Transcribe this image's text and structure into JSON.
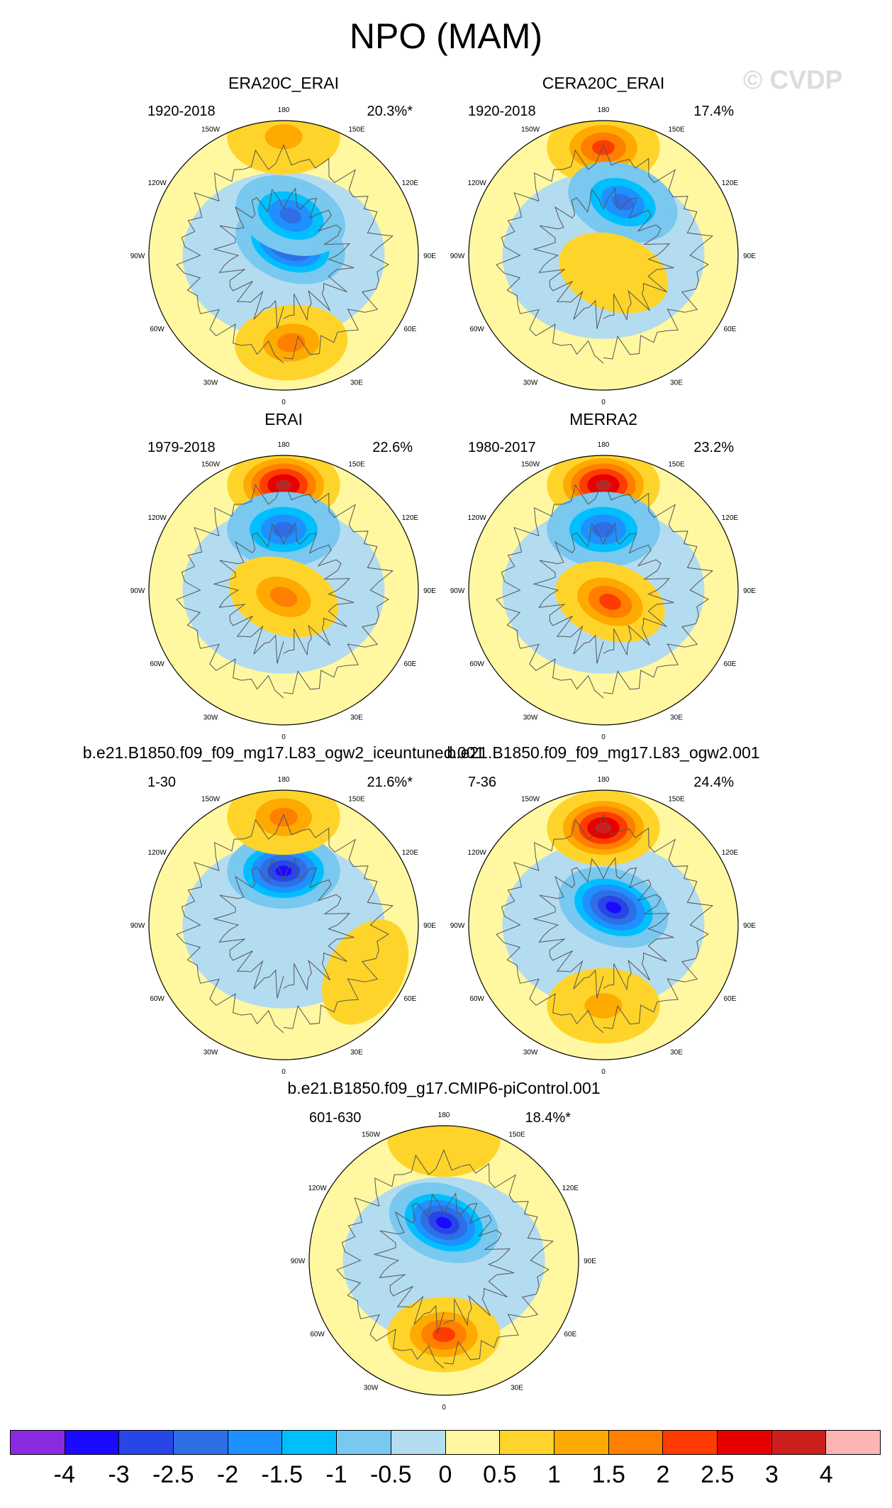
{
  "title": "NPO (MAM)",
  "watermark": "© CVDP",
  "chart_data": {
    "type": "heatmap",
    "description_type": "polar stereographic spatial maps (northern hemisphere)",
    "title": "NPO (MAM)",
    "longitude_labels": [
      "180",
      "150E",
      "120E",
      "90E",
      "60E",
      "30E",
      "0",
      "30W",
      "60W",
      "90W",
      "120W",
      "150W"
    ],
    "panels": [
      {
        "title": "ERA20C_ERAI",
        "period": "1920-2018",
        "variance": "20.3%*",
        "features": [
          {
            "type": "low",
            "lon": 150,
            "r": 0.1,
            "value": -3.0
          },
          {
            "type": "low",
            "lon": 170,
            "r": 0.3,
            "value": -2.0
          },
          {
            "type": "high",
            "lon": 5,
            "r": 0.65,
            "value": 1.5
          },
          {
            "type": "high",
            "lon": 180,
            "r": 0.88,
            "value": 1.0
          }
        ]
      },
      {
        "title": "CERA20C_ERAI",
        "period": "1920-2018",
        "variance": "17.4%",
        "features": [
          {
            "type": "high",
            "lon": 180,
            "r": 0.8,
            "value": 2.0
          },
          {
            "type": "low",
            "lon": 160,
            "r": 0.42,
            "value": -2.0
          },
          {
            "type": "high",
            "lon": 30,
            "r": 0.15,
            "value": 0.5
          }
        ]
      },
      {
        "title": "ERAI",
        "period": "1979-2018",
        "variance": "22.6%",
        "features": [
          {
            "type": "high",
            "lon": 180,
            "r": 0.78,
            "value": 3.0
          },
          {
            "type": "low",
            "lon": 180,
            "r": 0.45,
            "value": -2.0
          },
          {
            "type": "high",
            "lon": 0,
            "r": 0.05,
            "value": 1.5
          }
        ]
      },
      {
        "title": "MERRA2",
        "period": "1980-2017",
        "variance": "23.2%",
        "features": [
          {
            "type": "high",
            "lon": 180,
            "r": 0.78,
            "value": 3.0
          },
          {
            "type": "low",
            "lon": 180,
            "r": 0.45,
            "value": -2.0
          },
          {
            "type": "high",
            "lon": 30,
            "r": 0.1,
            "value": 2.0
          }
        ]
      },
      {
        "title": "b.e21.B1850.f09_f09_mg17.L83_ogw2_iceuntuned.001",
        "period": "1-30",
        "variance": "21.6%*",
        "features": [
          {
            "type": "low",
            "lon": 180,
            "r": 0.4,
            "value": -3.0
          },
          {
            "type": "high",
            "lon": 180,
            "r": 0.8,
            "value": 1.5
          },
          {
            "type": "high",
            "lon": 60,
            "r": 0.7,
            "value": 0.5
          }
        ]
      },
      {
        "title": "b.e21.B1850.f09_f09_mg17.L83_ogw2.001",
        "period": "7-36",
        "variance": "24.4%",
        "features": [
          {
            "type": "high",
            "lon": 180,
            "r": 0.72,
            "value": 3.0
          },
          {
            "type": "low",
            "lon": 150,
            "r": 0.15,
            "value": -3.0
          },
          {
            "type": "high",
            "lon": 0,
            "r": 0.6,
            "value": 1.0
          }
        ]
      },
      {
        "title": "b.e21.B1850.f09_g17.CMIP6-piControl.001",
        "period": "601-630",
        "variance": "18.4%*",
        "features": [
          {
            "type": "low",
            "lon": 180,
            "r": 0.28,
            "value": -3.5
          },
          {
            "type": "high",
            "lon": 0,
            "r": 0.55,
            "value": 2.0
          },
          {
            "type": "high",
            "lon": 180,
            "r": 0.9,
            "value": 0.5
          }
        ]
      }
    ],
    "colorbar": {
      "colors": [
        "#8a2be2",
        "#1a0aff",
        "#2846e6",
        "#2f6fe6",
        "#1e90ff",
        "#00bfff",
        "#78c8f0",
        "#b4dcf0",
        "#fff8a0",
        "#ffd42a",
        "#ffaa00",
        "#ff7f00",
        "#ff3c00",
        "#e60000",
        "#cd1e1e",
        "#ffb4b4"
      ],
      "labels": [
        "-4",
        "-3",
        "-2.5",
        "-2",
        "-1.5",
        "-1",
        "-0.5",
        "0",
        "0.5",
        "1",
        "1.5",
        "2",
        "2.5",
        "3",
        "4"
      ]
    }
  }
}
